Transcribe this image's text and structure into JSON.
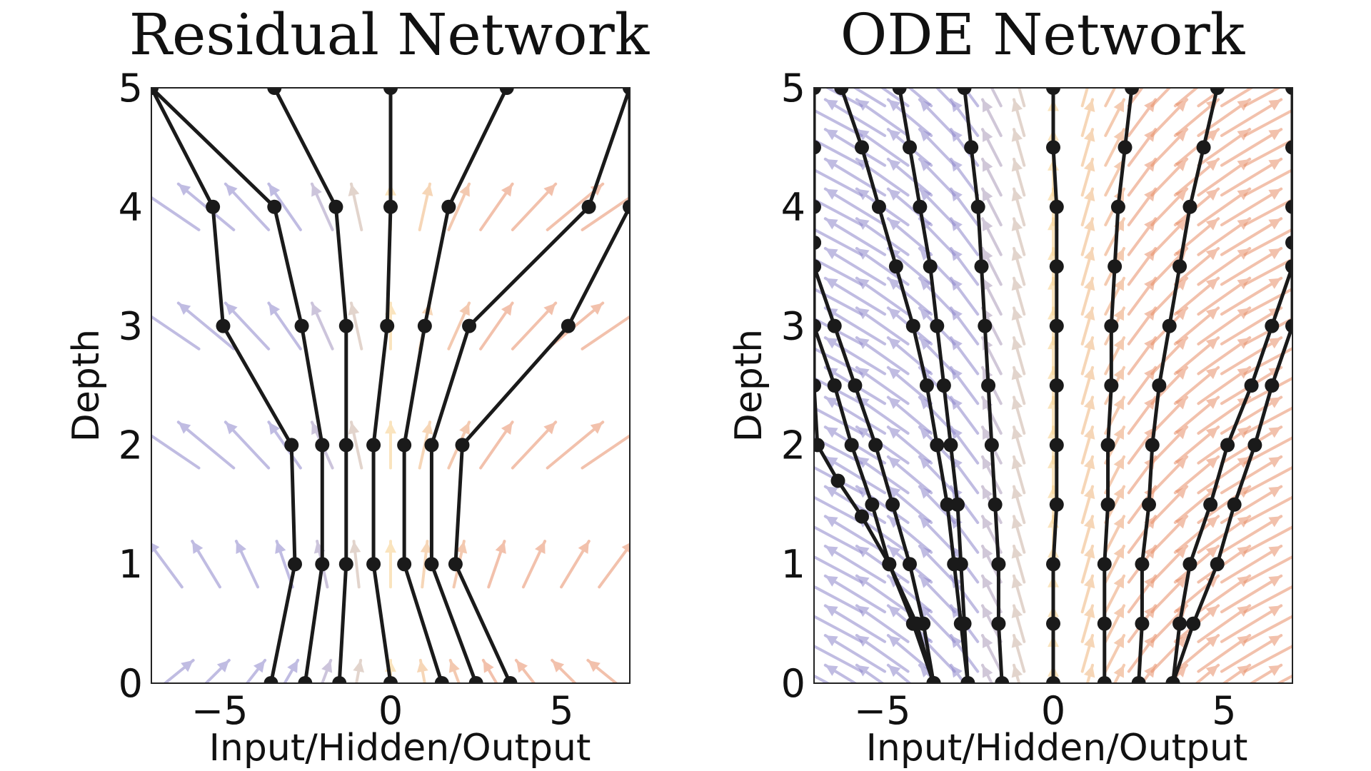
{
  "chart_data": [
    {
      "type": "line",
      "title": "Residual Network",
      "xlabel": "Input/Hidden/Output",
      "ylabel": "Depth",
      "xlim": [
        -7,
        7
      ],
      "ylim": [
        0,
        5
      ],
      "xticks": [
        {
          "value": -5,
          "label": "−5"
        },
        {
          "value": 0,
          "label": "0"
        },
        {
          "value": 5,
          "label": "5"
        }
      ],
      "yticks": [
        {
          "value": 0,
          "label": "0"
        },
        {
          "value": 1,
          "label": "1"
        },
        {
          "value": 2,
          "label": "2"
        },
        {
          "value": 3,
          "label": "3"
        },
        {
          "value": 4,
          "label": "4"
        },
        {
          "value": 5,
          "label": "5"
        }
      ],
      "grid": false,
      "vector_field": {
        "depths": [
          0,
          1,
          2,
          3,
          4
        ],
        "growth": [
          -0.25,
          0.15,
          0.3,
          0.3,
          0.3
        ],
        "negative_color": "#8e86cc",
        "positive_color": "#e8906a",
        "neutral_color": "#f6cf8a"
      },
      "trajectories": [
        {
          "depth": [
            0,
            1,
            2,
            3,
            4,
            5
          ],
          "x": [
            -3.5,
            -2.8,
            -2.9,
            -4.9,
            -5.2,
            -7.0
          ]
        },
        {
          "depth": [
            0,
            1,
            2,
            3,
            4,
            5
          ],
          "x": [
            -2.5,
            -2.0,
            -2.0,
            -2.6,
            -3.4,
            -7.0
          ]
        },
        {
          "depth": [
            0,
            1,
            2,
            3,
            4,
            5
          ],
          "x": [
            -1.5,
            -1.3,
            -1.3,
            -1.3,
            -1.6,
            -3.4
          ]
        },
        {
          "depth": [
            0,
            1,
            2,
            3,
            4,
            5
          ],
          "x": [
            0.0,
            -0.5,
            -0.5,
            -0.1,
            0.0,
            0.0
          ]
        },
        {
          "depth": [
            0,
            1,
            2,
            3,
            4,
            5
          ],
          "x": [
            1.5,
            0.4,
            0.4,
            1.0,
            1.7,
            3.4
          ]
        },
        {
          "depth": [
            0,
            1,
            2,
            3,
            4,
            5
          ],
          "x": [
            2.5,
            1.2,
            1.2,
            2.3,
            5.8,
            7.0
          ]
        },
        {
          "depth": [
            0,
            1,
            2,
            3,
            4,
            5
          ],
          "x": [
            3.5,
            1.9,
            2.1,
            5.2,
            7.0,
            7.0
          ]
        }
      ]
    },
    {
      "type": "line",
      "title": "ODE Network",
      "xlabel": "Input/Hidden/Output",
      "ylabel": "Depth",
      "xlim": [
        -7,
        7
      ],
      "ylim": [
        0,
        5
      ],
      "xticks": [
        {
          "value": -5,
          "label": "−5"
        },
        {
          "value": 0,
          "label": "0"
        },
        {
          "value": 5,
          "label": "5"
        }
      ],
      "yticks": [
        {
          "value": 0,
          "label": "0"
        },
        {
          "value": 1,
          "label": "1"
        },
        {
          "value": 2,
          "label": "2"
        },
        {
          "value": 3,
          "label": "3"
        },
        {
          "value": 4,
          "label": "4"
        },
        {
          "value": 5,
          "label": "5"
        }
      ],
      "grid": false,
      "vector_field": {
        "growth": 0.3,
        "negative_color": "#8e86cc",
        "positive_color": "#e8906a",
        "neutral_color": "#f6cf8a"
      },
      "trajectories": [
        {
          "depth": [
            0,
            0.5,
            1.0,
            1.4,
            1.7,
            2.0,
            2.5,
            3.0,
            3.5,
            3.7
          ],
          "x": [
            -3.5,
            -4.1,
            -4.8,
            -5.6,
            -6.3,
            -6.9,
            -7.0,
            -7.0,
            -7.0,
            -7.0
          ]
        },
        {
          "depth": [
            0,
            0.5,
            1.0,
            1.5,
            2.0,
            2.5,
            3.0,
            3.5,
            3.7
          ],
          "x": [
            -3.5,
            -4.0,
            -4.8,
            -5.3,
            -5.9,
            -6.4,
            -7.0,
            -7.0,
            -7.0
          ]
        },
        {
          "depth": [
            0,
            0.5,
            1.0,
            1.5,
            2.0,
            2.5,
            3.0,
            3.5,
            4.0,
            4.5,
            5.0
          ],
          "x": [
            -3.5,
            -3.8,
            -4.2,
            -4.7,
            -5.2,
            -5.8,
            -6.4,
            -7.0,
            -7.0,
            -7.0,
            -7.0
          ]
        },
        {
          "depth": [
            0,
            0.5,
            1.0,
            1.5,
            2.0,
            2.5,
            3.0,
            3.5,
            4.0,
            4.5,
            5.0
          ],
          "x": [
            -2.5,
            -2.7,
            -2.9,
            -3.1,
            -3.4,
            -3.7,
            -4.1,
            -4.6,
            -5.1,
            -5.6,
            -6.2
          ]
        },
        {
          "depth": [
            0,
            0.5,
            1.0,
            1.5,
            2.0,
            2.5,
            3.0,
            3.5,
            4.0,
            4.5,
            5.0
          ],
          "x": [
            -2.5,
            -2.6,
            -2.7,
            -2.8,
            -3.0,
            -3.2,
            -3.4,
            -3.6,
            -3.9,
            -4.2,
            -4.5
          ]
        },
        {
          "depth": [
            0,
            0.5,
            1.0,
            1.5,
            2.0,
            2.5,
            3.0,
            3.5,
            4.0,
            4.5,
            5.0
          ],
          "x": [
            -1.5,
            -1.6,
            -1.6,
            -1.7,
            -1.8,
            -1.9,
            -2.0,
            -2.1,
            -2.2,
            -2.4,
            -2.6
          ]
        },
        {
          "depth": [
            0,
            0.5,
            1.0,
            1.5,
            2.0,
            2.5,
            3.0,
            3.5,
            4.0,
            4.5,
            5.0
          ],
          "x": [
            0.0,
            0.0,
            0.0,
            0.1,
            0.1,
            0.1,
            0.1,
            0.1,
            0.1,
            0.0,
            0.0
          ]
        },
        {
          "depth": [
            0,
            0.5,
            1.0,
            1.5,
            2.0,
            2.5,
            3.0,
            3.5,
            4.0,
            4.5,
            5.0
          ],
          "x": [
            1.5,
            1.5,
            1.5,
            1.6,
            1.6,
            1.7,
            1.7,
            1.8,
            1.9,
            2.1,
            2.3
          ]
        },
        {
          "depth": [
            0,
            0.5,
            1.0,
            1.5,
            2.0,
            2.5,
            3.0,
            3.5,
            4.0,
            4.5,
            5.0
          ],
          "x": [
            2.5,
            2.6,
            2.6,
            2.8,
            2.9,
            3.1,
            3.4,
            3.7,
            4.0,
            4.4,
            4.8
          ]
        },
        {
          "depth": [
            0,
            0.5,
            1.0,
            1.5,
            2.0,
            2.5,
            3.0,
            3.5,
            4.0,
            4.5,
            5.0
          ],
          "x": [
            3.5,
            3.7,
            4.0,
            4.6,
            5.1,
            5.8,
            6.4,
            7.0,
            7.0,
            7.0,
            7.0
          ]
        },
        {
          "depth": [
            0,
            0.5,
            1.0,
            1.5,
            2.0,
            2.5,
            3.0,
            3.5,
            3.7
          ],
          "x": [
            3.5,
            4.1,
            4.8,
            5.3,
            5.9,
            6.4,
            7.0,
            7.0,
            7.0
          ]
        }
      ]
    }
  ]
}
